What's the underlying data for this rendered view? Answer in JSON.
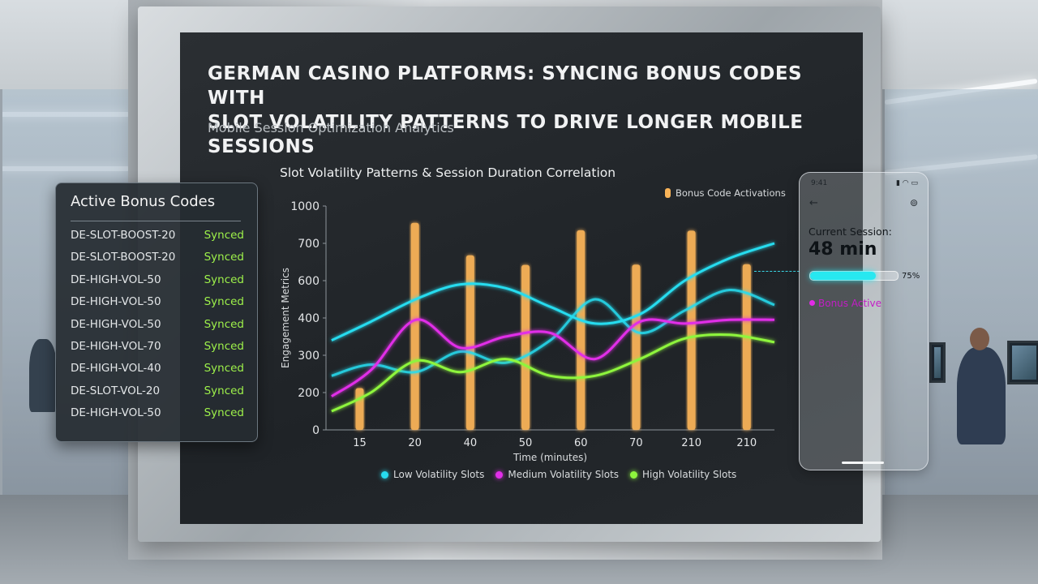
{
  "display": {
    "title_line1": "German Casino Platforms: Syncing Bonus Codes with",
    "title_line2": "Slot Volatility Patterns to Drive Longer Mobile Sessions",
    "subtitle": "Mobile Session Optimization Analytics"
  },
  "bonus_panel": {
    "heading": "Active Bonus Codes",
    "codes": [
      {
        "code": "DE-SLOT-BOOST-20",
        "status": "Synced"
      },
      {
        "code": "DE-SLOT-BOOST-20",
        "status": "Synced"
      },
      {
        "code": "DE-HIGH-VOL-50",
        "status": "Synced"
      },
      {
        "code": "DE-HIGH-VOL-50",
        "status": "Synced"
      },
      {
        "code": "DE-HIGH-VOL-50",
        "status": "Synced"
      },
      {
        "code": "DE-HIGH-VOL-70",
        "status": "Synced"
      },
      {
        "code": "DE-HIGH-VOL-40",
        "status": "Synced"
      },
      {
        "code": "DE-SLOT-VOL-20",
        "status": "Synced"
      },
      {
        "code": "DE-HIGH-VOL-50",
        "status": "Synced"
      }
    ],
    "status_color": "#9ef24a"
  },
  "phone": {
    "time": "9:41",
    "status_icons": "▮ ◠ ▭",
    "label": "Current Session:",
    "value": "48 min",
    "progress_percent": 75,
    "progress_label": "75%",
    "bonus_label": "Bonus Active",
    "accent": "#27e8f0",
    "back_icon": "arrow-left-icon",
    "settings_icon": "gear-icon"
  },
  "chart_data": {
    "type": "line",
    "title": "Slot Volatility Patterns & Session Duration Correlation",
    "xlabel": "Time (minutes)",
    "ylabel": "Engagement Metrics",
    "y_tick_labels": [
      "0",
      "200",
      "300",
      "400",
      "600",
      "700",
      "1000"
    ],
    "x_tick_labels": [
      "15",
      "20",
      "40",
      "50",
      "60",
      "70",
      "210",
      "210"
    ],
    "grid": false,
    "legend_top": "Bonus Code Activations",
    "legend_bottom_placement": "bottom",
    "bars": {
      "name": "Bonus Code Activations",
      "color": "#f8b358",
      "levels": [
        1.12,
        5.55,
        4.68,
        4.42,
        5.35,
        4.43,
        5.34,
        4.44
      ]
    },
    "series": [
      {
        "name": "Low Volatility Slots",
        "color": "#27dcef",
        "x": [
          0.1,
          0.8,
          1.6,
          2.4,
          3.2,
          4.0,
          4.8,
          5.6,
          6.4,
          7.2,
          8.0
        ],
        "values": [
          2.4,
          2.9,
          3.5,
          3.9,
          3.8,
          3.3,
          2.85,
          3.1,
          4.0,
          4.6,
          5.0
        ],
        "values_secondary": [
          1.45,
          1.75,
          1.55,
          2.1,
          1.8,
          2.4,
          3.5,
          2.6,
          3.2,
          3.75,
          3.35
        ]
      },
      {
        "name": "Medium Volatility Slots",
        "color": "#e12ee8",
        "x": [
          0.1,
          0.8,
          1.6,
          2.4,
          3.2,
          4.0,
          4.8,
          5.6,
          6.4,
          7.2,
          8.0
        ],
        "values": [
          0.9,
          1.6,
          2.95,
          2.2,
          2.5,
          2.6,
          1.9,
          2.9,
          2.85,
          2.95,
          2.95
        ]
      },
      {
        "name": "High Volatility Slots",
        "color": "#8ef53d",
        "x": [
          0.1,
          0.8,
          1.6,
          2.4,
          3.2,
          4.0,
          4.8,
          5.6,
          6.4,
          7.2,
          8.0
        ],
        "values": [
          0.5,
          1.0,
          1.85,
          1.55,
          1.9,
          1.45,
          1.45,
          1.9,
          2.45,
          2.55,
          2.35
        ]
      }
    ]
  }
}
